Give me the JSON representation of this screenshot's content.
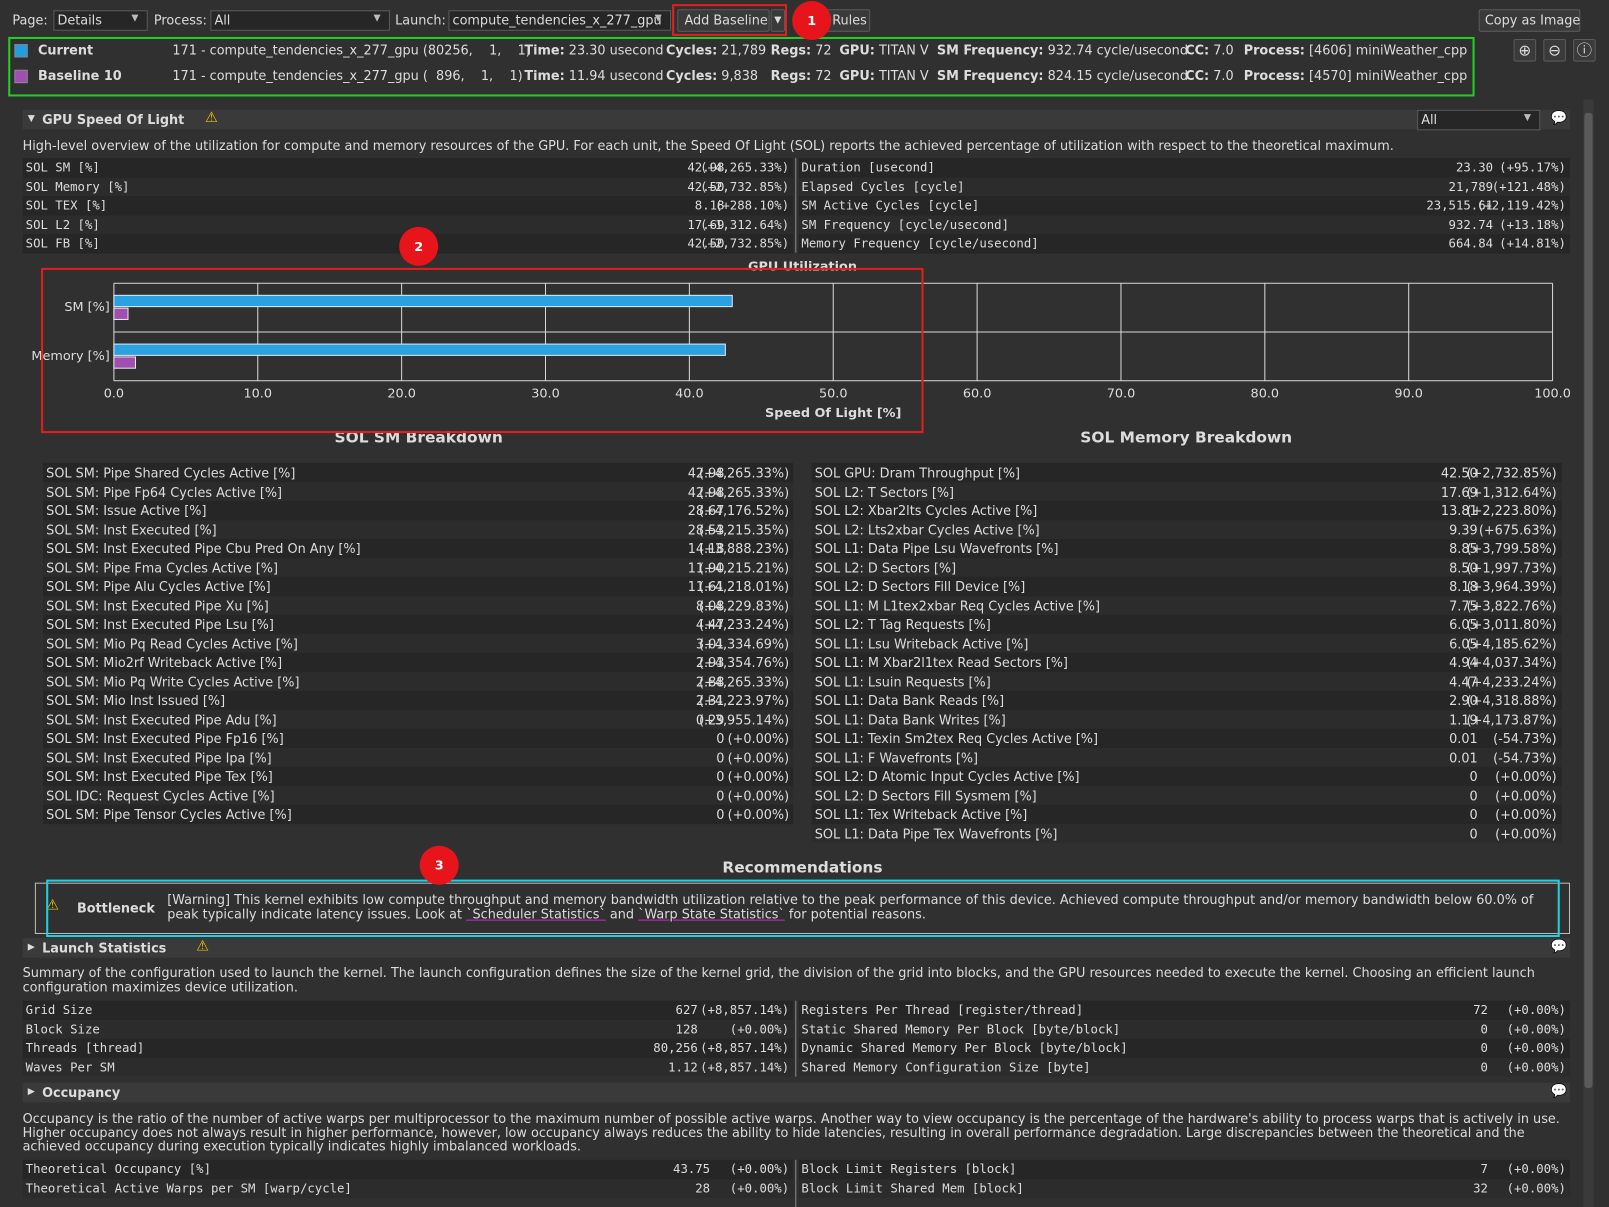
{
  "toolbar": {
    "page_label": "Page:",
    "page_value": "Details",
    "process_label": "Process:",
    "process_value": "All",
    "launch_label": "Launch:",
    "launch_value": "compute_tendencies_x_277_gpu",
    "add_baseline": "Add Baseline",
    "rules": "Rules",
    "copy_as_image": "Copy as Image"
  },
  "results": [
    {
      "name": "Current",
      "color": "#1f9ee0",
      "kernel": "171 - compute_tendencies_x_277_gpu (80256,    1,    1)",
      "fields": [
        [
          "Time:",
          "23.30 usecond"
        ],
        [
          "Cycles:",
          "21,789"
        ],
        [
          "Regs:",
          "72"
        ],
        [
          "GPU:",
          "TITAN V"
        ],
        [
          "SM Frequency:",
          "932.74 cycle/usecond"
        ],
        [
          "CC:",
          "7.0"
        ],
        [
          "Process:",
          "[4606] miniWeather_cpp"
        ]
      ]
    },
    {
      "name": "Baseline 10",
      "color": "#a04fb0",
      "kernel": "171 - compute_tendencies_x_277_gpu (  896,    1,    1)",
      "fields": [
        [
          "Time:",
          "11.94 usecond"
        ],
        [
          "Cycles:",
          "9,838"
        ],
        [
          "Regs:",
          "72"
        ],
        [
          "GPU:",
          "TITAN V"
        ],
        [
          "SM Frequency:",
          "824.15 cycle/usecond"
        ],
        [
          "CC:",
          "7.0"
        ],
        [
          "Process:",
          "[4570] miniWeather_cpp"
        ]
      ]
    }
  ],
  "sol": {
    "title": "GPU Speed Of Light",
    "filter": "All",
    "description": "High-level overview of the utilization for compute and memory resources of the GPU. For each unit, the Speed Of Light (SOL) reports the achieved percentage of utilization with respect to the theoretical maximum.",
    "left": [
      [
        "SOL SM [%]",
        "42.98",
        "(+4,265.33%)"
      ],
      [
        "SOL Memory [%]",
        "42.50",
        "(+2,732.85%)"
      ],
      [
        "SOL TEX [%]",
        "8.18",
        "(+288.10%)"
      ],
      [
        "SOL L2 [%]",
        "17.69",
        "(+1,312.64%)"
      ],
      [
        "SOL FB [%]",
        "42.50",
        "(+2,732.85%)"
      ]
    ],
    "right": [
      [
        "Duration [usecond]",
        "23.30",
        "(+95.17%)"
      ],
      [
        "Elapsed Cycles [cycle]",
        "21,789",
        "(+121.48%)"
      ],
      [
        "SM Active Cycles [cycle]",
        "23,515.61",
        "(+2,119.42%)"
      ],
      [
        "SM Frequency [cycle/usecond]",
        "932.74",
        "(+13.18%)"
      ],
      [
        "Memory Frequency [cycle/usecond]",
        "664.84",
        "(+14.81%)"
      ]
    ]
  },
  "chart_data": {
    "type": "bar",
    "orientation": "horizontal",
    "title": "GPU Utilization",
    "x_label": "Speed Of Light [%]",
    "categories": [
      "SM [%]",
      "Memory [%]"
    ],
    "series": [
      {
        "color": "#2aa1e0",
        "values": [
          42.98,
          42.5
        ]
      },
      {
        "color": "#a04fb0",
        "values": [
          0.98,
          1.5
        ]
      }
    ],
    "xlim": [
      0,
      100
    ],
    "xticks": [
      {
        "value": 0,
        "label": "0.0"
      },
      {
        "value": 10,
        "label": "10.0"
      },
      {
        "value": 20,
        "label": "20.0"
      },
      {
        "value": 30,
        "label": "30.0"
      },
      {
        "value": 40,
        "label": "40.0"
      },
      {
        "value": 50,
        "label": "50.0"
      },
      {
        "value": 60,
        "label": "60.0"
      },
      {
        "value": 70,
        "label": "70.0"
      },
      {
        "value": 80,
        "label": "80.0"
      },
      {
        "value": 90,
        "label": "90.0"
      },
      {
        "value": 100,
        "label": "100.0"
      }
    ],
    "grid": true
  },
  "sm_breakdown": {
    "title": "SOL SM Breakdown",
    "rows": [
      [
        "SOL SM: Pipe Shared Cycles Active [%]",
        "42.98",
        "(+4,265.33%)"
      ],
      [
        "SOL SM: Pipe Fp64 Cycles Active [%]",
        "42.98",
        "(+4,265.33%)"
      ],
      [
        "SOL SM: Issue Active [%]",
        "28.67",
        "(+4,176.52%)"
      ],
      [
        "SOL SM: Inst Executed [%]",
        "28.53",
        "(+4,215.35%)"
      ],
      [
        "SOL SM: Inst Executed Pipe Cbu Pred On Any [%]",
        "14.18",
        "(+3,888.23%)"
      ],
      [
        "SOL SM: Pipe Fma Cycles Active [%]",
        "11.90",
        "(+4,215.21%)"
      ],
      [
        "SOL SM: Pipe Alu Cycles Active [%]",
        "11.61",
        "(+4,218.01%)"
      ],
      [
        "SOL SM: Inst Executed Pipe Xu [%]",
        "8.08",
        "(+4,229.83%)"
      ],
      [
        "SOL SM: Inst Executed Pipe Lsu [%]",
        "4.47",
        "(+4,233.24%)"
      ],
      [
        "SOL SM: Mio Pq Read Cycles Active [%]",
        "3.01",
        "(+4,334.69%)"
      ],
      [
        "SOL SM: Mio2rf Writeback Active [%]",
        "2.93",
        "(+4,354.76%)"
      ],
      [
        "SOL SM: Mio Pq Write Cycles Active [%]",
        "2.88",
        "(+4,265.33%)"
      ],
      [
        "SOL SM: Mio Inst Issued [%]",
        "2.31",
        "(+4,223.97%)"
      ],
      [
        "SOL SM: Inst Executed Pipe Adu [%]",
        "0.29",
        "(+3,955.14%)"
      ],
      [
        "SOL SM: Inst Executed Pipe Fp16 [%]",
        "0",
        "(+0.00%)"
      ],
      [
        "SOL SM: Inst Executed Pipe Ipa [%]",
        "0",
        "(+0.00%)"
      ],
      [
        "SOL SM: Inst Executed Pipe Tex [%]",
        "0",
        "(+0.00%)"
      ],
      [
        "SOL IDC: Request Cycles Active [%]",
        "0",
        "(+0.00%)"
      ],
      [
        "SOL SM: Pipe Tensor Cycles Active [%]",
        "0",
        "(+0.00%)"
      ]
    ]
  },
  "memory_breakdown": {
    "title": "SOL Memory Breakdown",
    "rows": [
      [
        "SOL GPU: Dram Throughput [%]",
        "42.50",
        "(+2,732.85%)"
      ],
      [
        "SOL L2: T Sectors [%]",
        "17.69",
        "(+1,312.64%)"
      ],
      [
        "SOL L2: Xbar2lts Cycles Active [%]",
        "13.81",
        "(+2,223.80%)"
      ],
      [
        "SOL L2: Lts2xbar Cycles Active [%]",
        "9.39",
        "(+675.63%)"
      ],
      [
        "SOL L1: Data Pipe Lsu Wavefronts [%]",
        "8.85",
        "(+3,799.58%)"
      ],
      [
        "SOL L2: D Sectors [%]",
        "8.50",
        "(+1,997.73%)"
      ],
      [
        "SOL L2: D Sectors Fill Device [%]",
        "8.18",
        "(+3,964.39%)"
      ],
      [
        "SOL L1: M L1tex2xbar Req Cycles Active [%]",
        "7.75",
        "(+3,822.76%)"
      ],
      [
        "SOL L2: T Tag Requests [%]",
        "6.05",
        "(+3,011.80%)"
      ],
      [
        "SOL L1: Lsu Writeback Active [%]",
        "6.05",
        "(+4,185.62%)"
      ],
      [
        "SOL L1: M Xbar2l1tex Read Sectors [%]",
        "4.94",
        "(+4,037.34%)"
      ],
      [
        "SOL L1: Lsuin Requests [%]",
        "4.47",
        "(+4,233.24%)"
      ],
      [
        "SOL L1: Data Bank Reads [%]",
        "2.90",
        "(+4,318.88%)"
      ],
      [
        "SOL L1: Data Bank Writes [%]",
        "1.19",
        "(+4,173.87%)"
      ],
      [
        "SOL L1: Texin Sm2tex Req Cycles Active [%]",
        "0.01",
        "(-54.73%)"
      ],
      [
        "SOL L1: F Wavefronts [%]",
        "0.01",
        "(-54.73%)"
      ],
      [
        "SOL L2: D Atomic Input Cycles Active [%]",
        "0",
        "(+0.00%)"
      ],
      [
        "SOL L2: D Sectors Fill Sysmem [%]",
        "0",
        "(+0.00%)"
      ],
      [
        "SOL L1: Tex Writeback Active [%]",
        "0",
        "(+0.00%)"
      ],
      [
        "SOL L1: Data Pipe Tex Wavefronts [%]",
        "0",
        "(+0.00%)"
      ]
    ]
  },
  "recommendations": {
    "title": "Recommendations",
    "label": "Bottleneck",
    "text_parts": [
      "[Warning] This kernel exhibits low compute throughput and memory bandwidth utilization relative to the peak performance of this device. Achieved compute throughput and/or memory bandwidth below 60.0% of peak typically indicate latency issues. Look at ",
      "`Scheduler Statistics`",
      " and ",
      "`Warp State Statistics`",
      " for potential reasons."
    ]
  },
  "launch": {
    "title": "Launch Statistics",
    "description": "Summary of the configuration used to launch the kernel. The launch configuration defines the size of the kernel grid, the division of the grid into blocks, and the GPU resources needed to execute the kernel. Choosing an efficient launch configuration maximizes device utilization.",
    "left": [
      [
        "Grid Size",
        "627",
        "(+8,857.14%)"
      ],
      [
        "Block Size",
        "128",
        "(+0.00%)"
      ],
      [
        "Threads [thread]",
        "80,256",
        "(+8,857.14%)"
      ],
      [
        "Waves Per SM",
        "1.12",
        "(+8,857.14%)"
      ]
    ],
    "right": [
      [
        "Registers Per Thread [register/thread]",
        "72",
        "(+0.00%)"
      ],
      [
        "Static Shared Memory Per Block [byte/block]",
        "0",
        "(+0.00%)"
      ],
      [
        "Dynamic Shared Memory Per Block [byte/block]",
        "0",
        "(+0.00%)"
      ],
      [
        "Shared Memory Configuration Size [byte]",
        "0",
        "(+0.00%)"
      ]
    ]
  },
  "occupancy": {
    "title": "Occupancy",
    "description": "Occupancy is the ratio of the number of active warps per multiprocessor to the maximum number of possible active warps. Another way to view occupancy is the percentage of the hardware's ability to process warps that is actively in use. Higher occupancy does not always result in higher performance, however, low occupancy always reduces the ability to hide latencies, resulting in overall performance degradation. Large discrepancies between the theoretical and the achieved occupancy during execution typically indicates highly imbalanced workloads.",
    "left": [
      [
        "Theoretical Occupancy [%]",
        "43.75",
        "(+0.00%)"
      ],
      [
        "Theoretical Active Warps per SM [warp/cycle]",
        "28",
        "(+0.00%)"
      ]
    ],
    "right": [
      [
        "Block Limit Registers [block]",
        "7",
        "(+0.00%)"
      ],
      [
        "Block Limit Shared Mem [block]",
        "32",
        "(+0.00%)"
      ]
    ]
  },
  "annotations": [
    "1",
    "2",
    "3"
  ]
}
